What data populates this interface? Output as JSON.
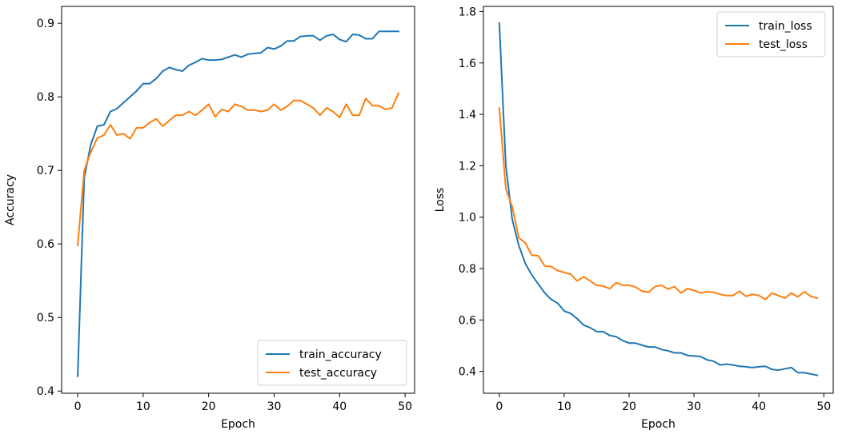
{
  "chart_data": [
    {
      "type": "line",
      "xlabel": "Epoch",
      "ylabel": "Accuracy",
      "xlim": [
        -2.45,
        51.45
      ],
      "ylim": [
        0.397,
        0.923
      ],
      "xticks": [
        0,
        10,
        20,
        30,
        40,
        50
      ],
      "yticks": [
        0.4,
        0.5,
        0.6,
        0.7,
        0.8,
        0.9
      ],
      "legend_position": "lower-right",
      "grid": false,
      "x": [
        0,
        1,
        2,
        3,
        4,
        5,
        6,
        7,
        8,
        9,
        10,
        11,
        12,
        13,
        14,
        15,
        16,
        17,
        18,
        19,
        20,
        21,
        22,
        23,
        24,
        25,
        26,
        27,
        28,
        29,
        30,
        31,
        32,
        33,
        34,
        35,
        36,
        37,
        38,
        39,
        40,
        41,
        42,
        43,
        44,
        45,
        46,
        47,
        48,
        49
      ],
      "series": [
        {
          "name": "train_accuracy",
          "color": "#1f77b4",
          "values": [
            0.42,
            0.69,
            0.735,
            0.76,
            0.762,
            0.78,
            0.784,
            0.792,
            0.8,
            0.808,
            0.818,
            0.818,
            0.825,
            0.835,
            0.84,
            0.837,
            0.835,
            0.843,
            0.847,
            0.852,
            0.85,
            0.85,
            0.851,
            0.854,
            0.857,
            0.854,
            0.858,
            0.859,
            0.86,
            0.867,
            0.865,
            0.869,
            0.876,
            0.876,
            0.882,
            0.883,
            0.883,
            0.877,
            0.883,
            0.885,
            0.878,
            0.875,
            0.885,
            0.884,
            0.879,
            0.879,
            0.889,
            0.889,
            0.889,
            0.889
          ]
        },
        {
          "name": "test_accuracy",
          "color": "#ff7f0e",
          "values": [
            0.598,
            0.7,
            0.725,
            0.744,
            0.748,
            0.762,
            0.748,
            0.75,
            0.743,
            0.758,
            0.758,
            0.765,
            0.77,
            0.76,
            0.768,
            0.775,
            0.775,
            0.78,
            0.775,
            0.782,
            0.79,
            0.773,
            0.783,
            0.78,
            0.79,
            0.787,
            0.782,
            0.782,
            0.78,
            0.782,
            0.79,
            0.782,
            0.787,
            0.795,
            0.795,
            0.79,
            0.785,
            0.775,
            0.785,
            0.78,
            0.772,
            0.79,
            0.775,
            0.775,
            0.798,
            0.788,
            0.788,
            0.783,
            0.785,
            0.805
          ]
        }
      ]
    },
    {
      "type": "line",
      "xlabel": "Epoch",
      "ylabel": "Loss",
      "xlim": [
        -2.45,
        51.45
      ],
      "ylim": [
        0.315,
        1.82
      ],
      "xticks": [
        0,
        10,
        20,
        30,
        40,
        50
      ],
      "yticks": [
        0.4,
        0.6,
        0.8,
        1.0,
        1.2,
        1.4,
        1.6,
        1.8
      ],
      "legend_position": "upper-right",
      "grid": false,
      "x": [
        0,
        1,
        2,
        3,
        4,
        5,
        6,
        7,
        8,
        9,
        10,
        11,
        12,
        13,
        14,
        15,
        16,
        17,
        18,
        19,
        20,
        21,
        22,
        23,
        24,
        25,
        26,
        27,
        28,
        29,
        30,
        31,
        32,
        33,
        34,
        35,
        36,
        37,
        38,
        39,
        40,
        41,
        42,
        43,
        44,
        45,
        46,
        47,
        48,
        49
      ],
      "series": [
        {
          "name": "train_loss",
          "color": "#1f77b4",
          "values": [
            1.755,
            1.2,
            0.99,
            0.89,
            0.82,
            0.775,
            0.74,
            0.705,
            0.68,
            0.665,
            0.635,
            0.625,
            0.605,
            0.58,
            0.57,
            0.555,
            0.555,
            0.54,
            0.535,
            0.52,
            0.51,
            0.51,
            0.502,
            0.495,
            0.495,
            0.485,
            0.48,
            0.472,
            0.472,
            0.462,
            0.46,
            0.458,
            0.445,
            0.44,
            0.425,
            0.428,
            0.425,
            0.42,
            0.418,
            0.415,
            0.418,
            0.42,
            0.408,
            0.405,
            0.41,
            0.415,
            0.395,
            0.395,
            0.39,
            0.385
          ]
        },
        {
          "name": "test_loss",
          "color": "#ff7f0e",
          "values": [
            1.425,
            1.11,
            1.04,
            0.92,
            0.9,
            0.852,
            0.85,
            0.81,
            0.808,
            0.792,
            0.785,
            0.778,
            0.752,
            0.768,
            0.752,
            0.735,
            0.732,
            0.722,
            0.745,
            0.735,
            0.735,
            0.728,
            0.712,
            0.708,
            0.73,
            0.735,
            0.72,
            0.73,
            0.705,
            0.722,
            0.715,
            0.705,
            0.71,
            0.708,
            0.7,
            0.695,
            0.695,
            0.712,
            0.692,
            0.7,
            0.695,
            0.68,
            0.705,
            0.695,
            0.685,
            0.705,
            0.69,
            0.71,
            0.692,
            0.685
          ]
        }
      ]
    }
  ]
}
